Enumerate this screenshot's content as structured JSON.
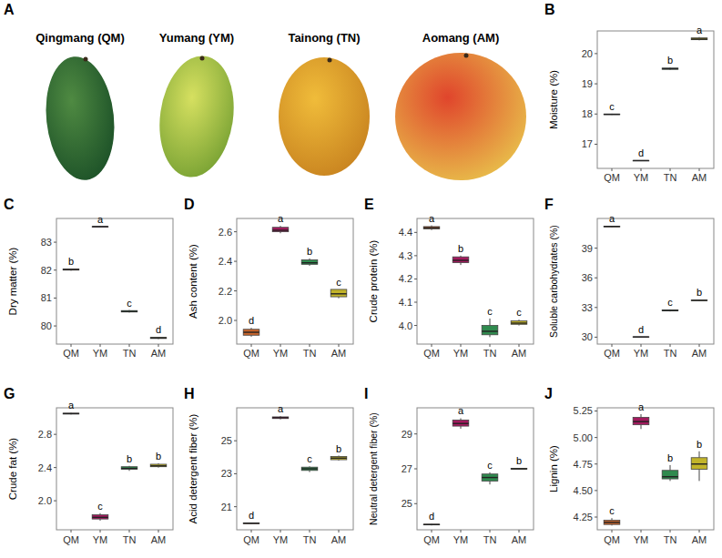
{
  "chart_data": [
    {
      "type": "image",
      "panel": "A",
      "labels": [
        "Qingmang (QM)",
        "Yumang (YM)",
        "Tainong (TN)",
        "Aomang (AM)"
      ]
    },
    {
      "type": "box",
      "panel": "B",
      "ylabel": "Moisture (%)",
      "categories": [
        "QM",
        "YM",
        "TN",
        "AM"
      ],
      "colors": [
        "#c8652c",
        "#a31a5e",
        "#2f8a4e",
        "#c2b42a"
      ],
      "ylim": [
        16.2,
        20.75
      ],
      "yticks": [
        17,
        18,
        19,
        20
      ],
      "boxes": [
        {
          "min": 17.97,
          "q1": 17.98,
          "median": 17.99,
          "q3": 18.0,
          "max": 18.01
        },
        {
          "min": 16.44,
          "q1": 16.45,
          "median": 16.46,
          "q3": 16.46,
          "max": 16.47
        },
        {
          "min": 19.46,
          "q1": 19.48,
          "median": 19.5,
          "q3": 19.52,
          "max": 19.54
        },
        {
          "min": 20.44,
          "q1": 20.46,
          "median": 20.48,
          "q3": 20.52,
          "max": 20.55
        }
      ],
      "letters": [
        "c",
        "d",
        "b",
        "a"
      ]
    },
    {
      "type": "box",
      "panel": "C",
      "ylabel": "Dry matter (%)",
      "categories": [
        "QM",
        "YM",
        "TN",
        "AM"
      ],
      "colors": [
        "#c8652c",
        "#a31a5e",
        "#2f8a4e",
        "#c2b42a"
      ],
      "ylim": [
        79.35,
        83.85
      ],
      "yticks": [
        80,
        81,
        82,
        83
      ],
      "boxes": [
        {
          "min": 81.98,
          "q1": 82.0,
          "median": 82.02,
          "q3": 82.04,
          "max": 82.05
        },
        {
          "min": 83.54,
          "q1": 83.55,
          "median": 83.56,
          "q3": 83.56,
          "max": 83.57
        },
        {
          "min": 80.48,
          "q1": 80.5,
          "median": 80.52,
          "q3": 80.55,
          "max": 80.57
        },
        {
          "min": 79.53,
          "q1": 79.55,
          "median": 79.57,
          "q3": 79.59,
          "max": 79.61
        }
      ],
      "letters": [
        "b",
        "a",
        "c",
        "d"
      ]
    },
    {
      "type": "box",
      "panel": "D",
      "ylabel": "Ash content (%)",
      "categories": [
        "QM",
        "YM",
        "TN",
        "AM"
      ],
      "colors": [
        "#c8652c",
        "#a31a5e",
        "#2f8a4e",
        "#c2b42a"
      ],
      "ylim": [
        1.84,
        2.69
      ],
      "yticks": [
        {
          "value": 2,
          "label": "2.0"
        },
        2.2,
        2.4,
        2.6
      ],
      "boxes": [
        {
          "min": 1.89,
          "q1": 1.9,
          "median": 1.92,
          "q3": 1.94,
          "max": 1.95
        },
        {
          "min": 2.59,
          "q1": 2.6,
          "median": 2.61,
          "q3": 2.63,
          "max": 2.64
        },
        {
          "min": 2.37,
          "q1": 2.38,
          "median": 2.39,
          "q3": 2.41,
          "max": 2.42
        },
        {
          "min": 2.15,
          "q1": 2.16,
          "median": 2.18,
          "q3": 2.21,
          "max": 2.21
        }
      ],
      "letters": [
        "d",
        "a",
        "b",
        "c"
      ]
    },
    {
      "type": "box",
      "panel": "E",
      "ylabel": "Crude protein (%)",
      "categories": [
        "QM",
        "YM",
        "TN",
        "AM"
      ],
      "colors": [
        "#c8652c",
        "#a31a5e",
        "#2f8a4e",
        "#c2b42a"
      ],
      "ylim": [
        3.92,
        4.46
      ],
      "yticks": [
        {
          "value": 4,
          "label": "4.0"
        },
        4.1,
        4.2,
        4.3,
        4.4
      ],
      "boxes": [
        {
          "min": 4.41,
          "q1": 4.415,
          "median": 4.42,
          "q3": 4.425,
          "max": 4.43
        },
        {
          "min": 4.26,
          "q1": 4.27,
          "median": 4.28,
          "q3": 4.295,
          "max": 4.3
        },
        {
          "min": 3.95,
          "q1": 3.96,
          "median": 3.975,
          "q3": 4.0,
          "max": 4.03
        },
        {
          "min": 4.0,
          "q1": 4.005,
          "median": 4.01,
          "q3": 4.02,
          "max": 4.025
        }
      ],
      "letters": [
        "a",
        "b",
        "c",
        "c"
      ]
    },
    {
      "type": "box",
      "panel": "F",
      "ylabel": "Soluble carbohydrates (%)",
      "categories": [
        "QM",
        "YM",
        "TN",
        "AM"
      ],
      "colors": [
        "#c8652c",
        "#a31a5e",
        "#2f8a4e",
        "#c2b42a"
      ],
      "ylim": [
        29.3,
        42.0
      ],
      "yticks": [
        30,
        33,
        36,
        39
      ],
      "boxes": [
        {
          "min": 41.1,
          "q1": 41.15,
          "median": 41.2,
          "q3": 41.22,
          "max": 41.25
        },
        {
          "min": 29.98,
          "q1": 30.0,
          "median": 30.02,
          "q3": 30.04,
          "max": 30.05
        },
        {
          "min": 32.6,
          "q1": 32.65,
          "median": 32.7,
          "q3": 32.75,
          "max": 32.8
        },
        {
          "min": 33.65,
          "q1": 33.7,
          "median": 33.72,
          "q3": 33.75,
          "max": 33.78
        }
      ],
      "letters": [
        "a",
        "d",
        "c",
        "b"
      ]
    },
    {
      "type": "box",
      "panel": "G",
      "ylabel": "Crude fat  (%)",
      "categories": [
        "QM",
        "YM",
        "TN",
        "AM"
      ],
      "colors": [
        "#c8652c",
        "#a31a5e",
        "#2f8a4e",
        "#c2b42a"
      ],
      "ylim": [
        1.65,
        3.12
      ],
      "yticks": [
        {
          "value": 2,
          "label": "2.0"
        },
        2.4,
        2.8
      ],
      "boxes": [
        {
          "min": 3.04,
          "q1": 3.045,
          "median": 3.05,
          "q3": 3.055,
          "max": 3.06
        },
        {
          "min": 1.76,
          "q1": 1.78,
          "median": 1.8,
          "q3": 1.83,
          "max": 1.85
        },
        {
          "min": 2.36,
          "q1": 2.38,
          "median": 2.39,
          "q3": 2.41,
          "max": 2.42
        },
        {
          "min": 2.4,
          "q1": 2.41,
          "median": 2.42,
          "q3": 2.44,
          "max": 2.45
        }
      ],
      "letters": [
        "a",
        "c",
        "b",
        "b"
      ]
    },
    {
      "type": "box",
      "panel": "H",
      "ylabel": "Acid detergent fiber (%)",
      "categories": [
        "QM",
        "YM",
        "TN",
        "AM"
      ],
      "colors": [
        "#c8652c",
        "#a31a5e",
        "#2f8a4e",
        "#c2b42a"
      ],
      "ylim": [
        19.6,
        27.0
      ],
      "yticks": [
        21,
        23,
        25
      ],
      "boxes": [
        {
          "min": 19.95,
          "q1": 19.97,
          "median": 20.0,
          "q3": 20.02,
          "max": 20.03
        },
        {
          "min": 26.3,
          "q1": 26.35,
          "median": 26.4,
          "q3": 26.45,
          "max": 26.5
        },
        {
          "min": 23.1,
          "q1": 23.2,
          "median": 23.3,
          "q3": 23.4,
          "max": 23.45
        },
        {
          "min": 23.8,
          "q1": 23.85,
          "median": 23.95,
          "q3": 24.05,
          "max": 24.1
        }
      ],
      "letters": [
        "d",
        "a",
        "c",
        "b"
      ]
    },
    {
      "type": "box",
      "panel": "I",
      "ylabel": "Neutral detergent fiber (%)",
      "categories": [
        "QM",
        "YM",
        "TN",
        "AM"
      ],
      "colors": [
        "#c8652c",
        "#a31a5e",
        "#2f8a4e",
        "#c2b42a"
      ],
      "ylim": [
        23.5,
        30.5
      ],
      "yticks": [
        25,
        27,
        29
      ],
      "boxes": [
        {
          "min": 23.75,
          "q1": 23.78,
          "median": 23.8,
          "q3": 23.82,
          "max": 23.84
        },
        {
          "min": 29.3,
          "q1": 29.45,
          "median": 29.6,
          "q3": 29.8,
          "max": 29.9
        },
        {
          "min": 26.1,
          "q1": 26.3,
          "median": 26.5,
          "q3": 26.7,
          "max": 26.8
        },
        {
          "min": 26.95,
          "q1": 26.98,
          "median": 27.0,
          "q3": 27.03,
          "max": 27.05
        }
      ],
      "letters": [
        "d",
        "a",
        "c",
        "b"
      ]
    },
    {
      "type": "box",
      "panel": "J",
      "ylabel": "Lignin (%)",
      "categories": [
        "QM",
        "YM",
        "TN",
        "AM"
      ],
      "colors": [
        "#c8652c",
        "#a31a5e",
        "#2f8a4e",
        "#c2b42a"
      ],
      "ylim": [
        4.13,
        5.28
      ],
      "yticks": [
        4.25,
        {
          "value": 4.5,
          "label": "4.50"
        },
        4.75,
        {
          "value": 5,
          "label": "5.00"
        },
        5.25
      ],
      "boxes": [
        {
          "min": 4.17,
          "q1": 4.18,
          "median": 4.2,
          "q3": 4.22,
          "max": 4.24
        },
        {
          "min": 5.08,
          "q1": 5.12,
          "median": 5.15,
          "q3": 5.19,
          "max": 5.22
        },
        {
          "min": 4.59,
          "q1": 4.61,
          "median": 4.63,
          "q3": 4.69,
          "max": 4.74
        },
        {
          "min": 4.59,
          "q1": 4.7,
          "median": 4.75,
          "q3": 4.81,
          "max": 4.87
        }
      ],
      "letters": [
        "c",
        "a",
        "b",
        "b"
      ]
    }
  ]
}
